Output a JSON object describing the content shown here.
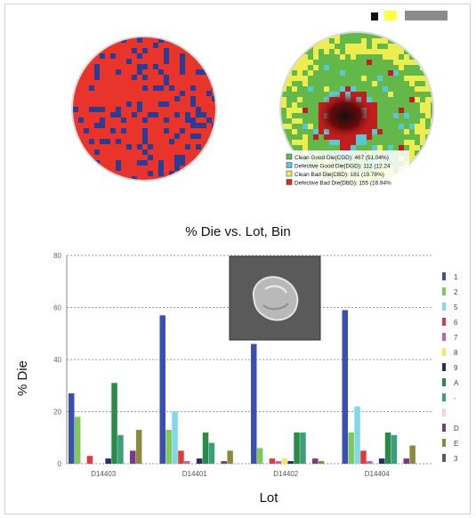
{
  "wafer_legend": [
    {
      "label": "Clean Good Die(CGD): 467 (51.04%)",
      "color": "#5cb85c"
    },
    {
      "label": "Defective Good Die(DGD): 112 (12.24",
      "color": "#5fc6d8"
    },
    {
      "label": "Clean Bad Die(CBD): 181 (19.78%)",
      "color": "#ecec5a"
    },
    {
      "label": "Defective Bad Die(DBD): 155 (16.94%",
      "color": "#d42a2a"
    }
  ],
  "colors": {
    "wafer_red": "#e8342a",
    "wafer_blue": "#2b3c91",
    "wafer_green": "#63b849",
    "wafer_yellow": "#eded4f",
    "wafer_cyan": "#58c7d6",
    "wafer_dark_red": "#c21d1d"
  },
  "chart_data": {
    "type": "bar",
    "title": "% Die vs. Lot, Bin",
    "xlabel": "Lot",
    "ylabel": "% Die",
    "ylim": [
      0,
      80
    ],
    "yticks": [
      0,
      20,
      40,
      60,
      80
    ],
    "grid": true,
    "legend_position": "right",
    "categories": [
      "D14403",
      "D14401",
      "D14402",
      "D14404"
    ],
    "series": [
      {
        "name": "1",
        "color": "#3a4fb0",
        "values": [
          27,
          57,
          46,
          59
        ]
      },
      {
        "name": "2",
        "color": "#7fc95a",
        "values": [
          18,
          13,
          6,
          12
        ]
      },
      {
        "name": "5",
        "color": "#7fd9e6",
        "values": [
          0,
          20,
          0,
          22
        ]
      },
      {
        "name": "6",
        "color": "#e03a3a",
        "values": [
          3,
          5,
          2,
          5
        ]
      },
      {
        "name": "7",
        "color": "#c060c0",
        "values": [
          0,
          1,
          1,
          1
        ]
      },
      {
        "name": "8",
        "color": "#eeee55",
        "values": [
          0,
          0,
          2,
          0
        ]
      },
      {
        "name": "9",
        "color": "#2a2a6a",
        "values": [
          2,
          2,
          1,
          2
        ]
      },
      {
        "name": "A",
        "color": "#2a8a4a",
        "values": [
          31,
          12,
          12,
          12
        ]
      },
      {
        "name": "-",
        "color": "#3aa07a",
        "values": [
          11,
          8,
          12,
          11
        ]
      },
      {
        "name": "",
        "color": "#ffd0d8",
        "values": [
          0,
          0,
          0,
          0
        ]
      },
      {
        "name": "D",
        "color": "#7a3a8a",
        "values": [
          5,
          1,
          2,
          2
        ]
      },
      {
        "name": "E",
        "color": "#8a8a3a",
        "values": [
          13,
          5,
          1,
          7
        ]
      },
      {
        "name": "3",
        "color": "#5a5a5a",
        "values": [
          0,
          0,
          0,
          0
        ]
      }
    ]
  }
}
